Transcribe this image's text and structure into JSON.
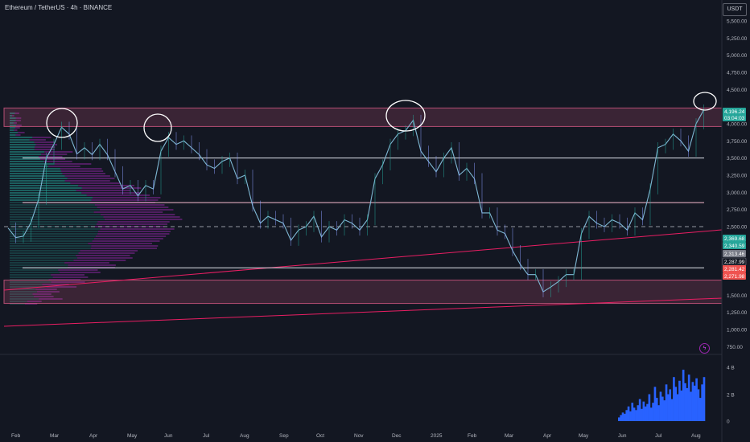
{
  "header": {
    "title": "Ethereum / TetherUS · 4h · BINANCE",
    "currency": "USDT"
  },
  "colors": {
    "background": "#131722",
    "zone": "#f06292",
    "trendline": "#e91e63",
    "volume": "#2962ff",
    "up": "#26a69a",
    "down": "#ef5350"
  },
  "icons": {
    "lightning": "lightning-icon"
  },
  "chart_data": {
    "type": "line",
    "title": "Ethereum / TetherUS · 4h · BINANCE",
    "ylim": [
      500,
      5750
    ],
    "y_ticks": [
      "5,500.00",
      "5,250.00",
      "5,000.00",
      "4,750.00",
      "4,500.00",
      "4,000.00",
      "3,750.00",
      "3,500.00",
      "3,250.00",
      "3,000.00",
      "2,750.00",
      "2,500.00",
      "1,500.00",
      "1,250.00",
      "1,000.00",
      "750.00"
    ],
    "x_labels": [
      "Feb",
      "Mar",
      "Apr",
      "May",
      "Jun",
      "Jul",
      "Aug",
      "Sep",
      "Oct",
      "Nov",
      "Dec",
      "2025",
      "Feb",
      "Mar",
      "Apr",
      "May",
      "Jun",
      "Jul",
      "Aug"
    ],
    "series": [
      {
        "points": [
          [
            0,
            2480
          ],
          [
            2,
            2340
          ],
          [
            4,
            2360
          ],
          [
            6,
            2560
          ],
          [
            8,
            2900
          ],
          [
            10,
            3500
          ],
          [
            12,
            3700
          ],
          [
            14,
            3950
          ],
          [
            16,
            3850
          ],
          [
            18,
            3560
          ],
          [
            20,
            3650
          ],
          [
            22,
            3550
          ],
          [
            24,
            3700
          ],
          [
            26,
            3550
          ],
          [
            28,
            3300
          ],
          [
            30,
            3050
          ],
          [
            32,
            3100
          ],
          [
            34,
            2950
          ],
          [
            36,
            3100
          ],
          [
            38,
            3050
          ],
          [
            40,
            3600
          ],
          [
            42,
            3800
          ],
          [
            44,
            3700
          ],
          [
            46,
            3750
          ],
          [
            48,
            3650
          ],
          [
            50,
            3550
          ],
          [
            52,
            3400
          ],
          [
            54,
            3350
          ],
          [
            56,
            3450
          ],
          [
            58,
            3500
          ],
          [
            60,
            3200
          ],
          [
            62,
            3250
          ],
          [
            64,
            2800
          ],
          [
            66,
            2550
          ],
          [
            68,
            2650
          ],
          [
            70,
            2600
          ],
          [
            72,
            2550
          ],
          [
            74,
            2300
          ],
          [
            76,
            2450
          ],
          [
            78,
            2500
          ],
          [
            80,
            2650
          ],
          [
            82,
            2350
          ],
          [
            84,
            2500
          ],
          [
            86,
            2450
          ],
          [
            88,
            2600
          ],
          [
            90,
            2550
          ],
          [
            92,
            2450
          ],
          [
            94,
            2600
          ],
          [
            96,
            3200
          ],
          [
            98,
            3400
          ],
          [
            100,
            3700
          ],
          [
            102,
            3850
          ],
          [
            104,
            3900
          ],
          [
            106,
            4050
          ],
          [
            108,
            3600
          ],
          [
            110,
            3450
          ],
          [
            112,
            3300
          ],
          [
            114,
            3500
          ],
          [
            116,
            3650
          ],
          [
            118,
            3250
          ],
          [
            120,
            3350
          ],
          [
            122,
            3200
          ],
          [
            124,
            2700
          ],
          [
            126,
            2700
          ],
          [
            128,
            2450
          ],
          [
            130,
            2400
          ],
          [
            132,
            2150
          ],
          [
            134,
            1950
          ],
          [
            136,
            1800
          ],
          [
            138,
            1800
          ],
          [
            140,
            1550
          ],
          [
            142,
            1620
          ],
          [
            144,
            1700
          ],
          [
            146,
            1800
          ],
          [
            148,
            1800
          ],
          [
            150,
            2400
          ],
          [
            152,
            2650
          ],
          [
            154,
            2550
          ],
          [
            156,
            2500
          ],
          [
            158,
            2600
          ],
          [
            160,
            2550
          ],
          [
            162,
            2450
          ],
          [
            164,
            2700
          ],
          [
            166,
            2600
          ],
          [
            168,
            3050
          ],
          [
            170,
            3650
          ],
          [
            172,
            3700
          ],
          [
            174,
            3850
          ],
          [
            176,
            3750
          ],
          [
            178,
            3600
          ],
          [
            180,
            4000
          ],
          [
            182,
            4200
          ]
        ]
      }
    ],
    "horizontal_levels": [
      3500,
      2850,
      2500,
      1900
    ],
    "zones": [
      {
        "from": 3960,
        "to": 4230
      },
      {
        "from": 1380,
        "to": 1720
      }
    ],
    "price_tags": [
      {
        "label": "4,196.24",
        "sub": "03:04:03",
        "color": "#26a69a"
      },
      {
        "label": "2,369.68",
        "color": "#26a69a"
      },
      {
        "label": "2,340.59",
        "color": "#26a69a"
      },
      {
        "label": "2,313.46",
        "color": "#787b86"
      },
      {
        "label": "2,287.99",
        "color": "#131722"
      },
      {
        "label": "2,281.42",
        "color": "#ef5350"
      },
      {
        "label": "2,271.98",
        "color": "#ef5350"
      }
    ],
    "volume_axis": [
      "4 B",
      "2 B",
      "0"
    ],
    "volume_values": [
      0.3,
      0.5,
      0.7,
      0.6,
      0.9,
      1.2,
      0.8,
      1.5,
      1.1,
      0.9,
      1.3,
      1.8,
      1.0,
      1.6,
      1.2,
      1.4,
      2.2,
      1.1,
      1.5,
      2.8,
      1.9,
      1.3,
      2.4,
      2.0,
      1.7,
      3.0,
      2.2,
      2.6,
      1.8,
      3.6,
      2.8,
      2.2,
      3.3,
      2.5,
      4.2,
      3.1,
      2.7,
      3.8,
      2.4,
      3.2,
      2.9,
      3.5,
      2.6,
      1.9,
      3.0,
      3.6
    ]
  }
}
